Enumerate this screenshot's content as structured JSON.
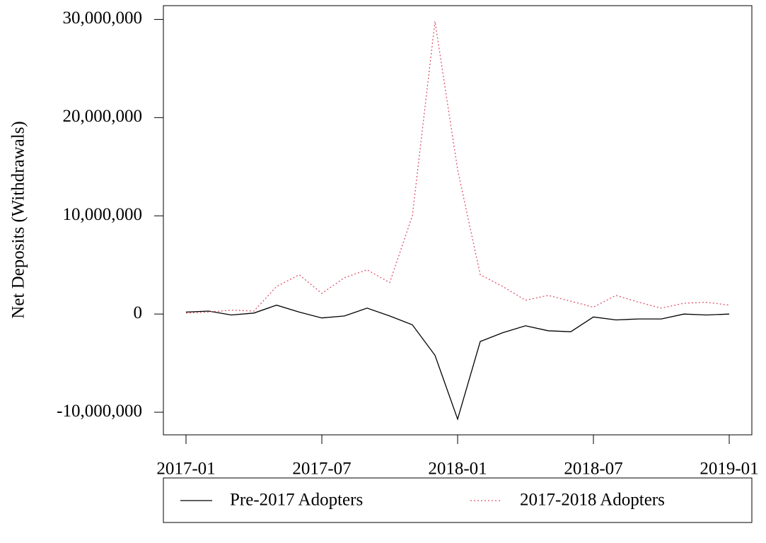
{
  "chart_data": {
    "type": "line",
    "y_label": "Net Deposits (Withdrawals)",
    "x": [
      "2017-01",
      "2017-02",
      "2017-03",
      "2017-04",
      "2017-05",
      "2017-06",
      "2017-07",
      "2017-08",
      "2017-09",
      "2017-10",
      "2017-11",
      "2017-12",
      "2018-01",
      "2018-02",
      "2018-03",
      "2018-04",
      "2018-05",
      "2018-06",
      "2018-07",
      "2018-08",
      "2018-09",
      "2018-10",
      "2018-11",
      "2018-12",
      "2019-01"
    ],
    "series": [
      {
        "name": "Pre-2017 Adopters",
        "color": "#000000",
        "dash": false,
        "values": [
          200000,
          300000,
          -100000,
          100000,
          900000,
          200000,
          -400000,
          -200000,
          600000,
          -200000,
          -1100000,
          -4200000,
          -10700000,
          -2800000,
          -1900000,
          -1200000,
          -1700000,
          -1800000,
          -300000,
          -600000,
          -500000,
          -500000,
          0,
          -100000,
          0
        ]
      },
      {
        "name": "2017-2018 Adopters",
        "color": "#df536b",
        "dash": true,
        "values": [
          100000,
          200000,
          400000,
          300000,
          2800000,
          4000000,
          2100000,
          3700000,
          4500000,
          3200000,
          10000000,
          29800000,
          14700000,
          4000000,
          2800000,
          1400000,
          1900000,
          1300000,
          700000,
          1900000,
          1200000,
          600000,
          1100000,
          1200000,
          900000
        ]
      }
    ],
    "ylim": [
      -12300000,
      31400000
    ],
    "yticks": [
      {
        "value": -10000000,
        "label": "-10,000,000"
      },
      0,
      {
        "value": 10000000,
        "label": "10,000,000"
      },
      {
        "value": 20000000,
        "label": "20,000,000"
      },
      {
        "value": 30000000,
        "label": "30,000,000"
      }
    ],
    "xticks": [
      "2017-01",
      "2017-07",
      "2018-01",
      "2018-07",
      "2019-01"
    ],
    "legend": "bottom"
  }
}
